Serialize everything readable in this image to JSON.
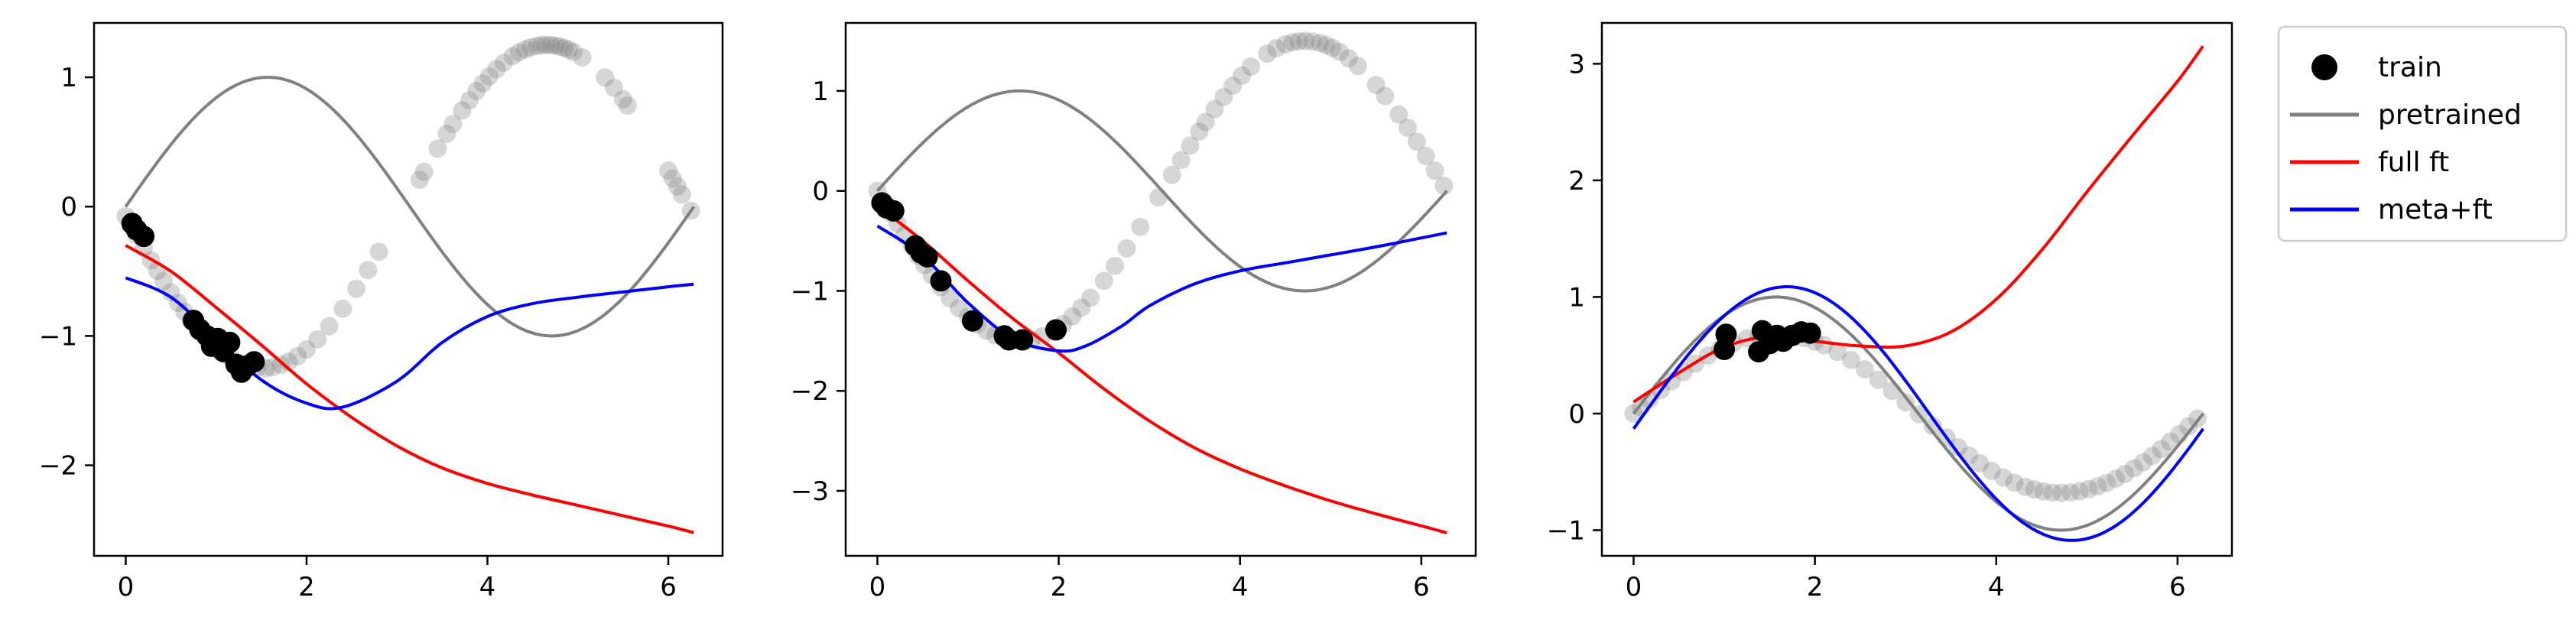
{
  "chart_data": [
    {
      "type": "line",
      "xlim": [
        -0.35,
        6.6
      ],
      "ylim": [
        -2.7,
        1.42
      ],
      "xticks": [
        0,
        2,
        4,
        6
      ],
      "yticks": [
        -2,
        -1,
        0,
        1
      ],
      "lines": {
        "pretrained": {
          "amp": 1.0,
          "phase": 0.0,
          "offset": 0.0
        },
        "full_ft": {
          "x": [
            0,
            0.5,
            1,
            1.5,
            2,
            2.5,
            3,
            3.5,
            4,
            4.5,
            5,
            5.5,
            6,
            6.28
          ],
          "y": [
            -0.3,
            -0.5,
            -0.78,
            -1.07,
            -1.37,
            -1.63,
            -1.85,
            -2.02,
            -2.14,
            -2.23,
            -2.31,
            -2.39,
            -2.47,
            -2.52
          ]
        },
        "meta_ft": {
          "x": [
            0,
            0.5,
            1,
            1.5,
            2,
            2.4,
            3,
            3.5,
            4,
            4.5,
            5,
            5.5,
            6,
            6.28
          ],
          "y": [
            -0.55,
            -0.7,
            -1.02,
            -1.34,
            -1.52,
            -1.55,
            -1.35,
            -1.05,
            -0.85,
            -0.75,
            -0.7,
            -0.66,
            -0.62,
            -0.6
          ]
        }
      },
      "test": {
        "amp": 1.25,
        "phase": 3.2,
        "offset": 0.0,
        "x": [
          0.0,
          0.06,
          0.12,
          0.2,
          0.28,
          0.35,
          0.42,
          0.5,
          0.58,
          0.65,
          0.72,
          0.8,
          0.88,
          0.95,
          1.02,
          1.1,
          1.18,
          1.26,
          1.35,
          1.45,
          1.55,
          1.62,
          1.72,
          1.8,
          1.9,
          2.0,
          2.12,
          2.25,
          2.4,
          2.55,
          2.68,
          2.8,
          3.25,
          3.3,
          3.45,
          3.55,
          3.62,
          3.72,
          3.8,
          3.88,
          3.95,
          4.02,
          4.1,
          4.18,
          4.28,
          4.35,
          4.42,
          4.48,
          4.55,
          4.6,
          4.65,
          4.7,
          4.75,
          4.8,
          4.85,
          4.9,
          4.95,
          5.05,
          5.3,
          5.4,
          5.5,
          5.55,
          6.0,
          6.05,
          6.1,
          6.15,
          6.25
        ]
      },
      "train": {
        "x": [
          0.07,
          0.12,
          0.2,
          0.75,
          0.82,
          0.9,
          0.95,
          1.02,
          1.08,
          1.15,
          1.22,
          1.28,
          1.35,
          1.42
        ],
        "y": [
          -0.13,
          -0.18,
          -0.23,
          -0.88,
          -0.95,
          -1.0,
          -1.08,
          -1.02,
          -1.12,
          -1.05,
          -1.22,
          -1.28,
          -1.23,
          -1.2
        ]
      }
    },
    {
      "type": "line",
      "xlim": [
        -0.35,
        6.6
      ],
      "ylim": [
        -3.65,
        1.68
      ],
      "xticks": [
        0,
        2,
        4,
        6
      ],
      "yticks": [
        -3,
        -2,
        -1,
        0,
        1
      ],
      "lines": {
        "pretrained": {
          "amp": 1.0,
          "phase": 0.0,
          "offset": 0.0
        },
        "full_ft": {
          "x": [
            0,
            0.5,
            1,
            1.5,
            2,
            2.5,
            3,
            3.5,
            4,
            4.5,
            5,
            5.5,
            6,
            6.28
          ],
          "y": [
            -0.15,
            -0.5,
            -0.9,
            -1.28,
            -1.62,
            -1.98,
            -2.3,
            -2.57,
            -2.78,
            -2.95,
            -3.1,
            -3.23,
            -3.35,
            -3.42
          ]
        },
        "meta_ft": {
          "x": [
            0,
            0.5,
            1,
            1.5,
            2,
            2.3,
            2.7,
            3,
            3.5,
            4,
            4.5,
            5,
            5.5,
            6,
            6.28
          ],
          "y": [
            -0.35,
            -0.65,
            -1.12,
            -1.48,
            -1.6,
            -1.55,
            -1.35,
            -1.15,
            -0.93,
            -0.8,
            -0.72,
            -0.64,
            -0.56,
            -0.47,
            -0.42
          ]
        },
        "reference": {
          "amp": 1.0,
          "phase": 0.0,
          "offset": 0.0
        }
      },
      "test": {
        "amp": 1.5,
        "phase": 3.14,
        "offset": 0.0,
        "x": [
          0.0,
          0.08,
          0.15,
          0.22,
          0.3,
          0.38,
          0.45,
          0.52,
          0.6,
          0.7,
          0.8,
          0.9,
          1.0,
          1.1,
          1.2,
          1.3,
          1.4,
          1.5,
          1.6,
          1.7,
          1.82,
          1.95,
          2.05,
          2.15,
          2.25,
          2.35,
          2.5,
          2.62,
          2.75,
          2.9,
          3.1,
          3.25,
          3.35,
          3.45,
          3.55,
          3.62,
          3.72,
          3.82,
          3.92,
          4.02,
          4.12,
          4.3,
          4.4,
          4.5,
          4.58,
          4.65,
          4.72,
          4.8,
          4.88,
          4.95,
          5.02,
          5.1,
          5.2,
          5.3,
          5.5,
          5.6,
          5.75,
          5.85,
          5.95,
          6.05,
          6.15,
          6.25
        ]
      },
      "train": {
        "x": [
          0.05,
          0.1,
          0.18,
          0.42,
          0.48,
          0.55,
          0.7,
          1.05,
          1.4,
          1.45,
          1.6,
          1.97
        ],
        "y": [
          -0.12,
          -0.17,
          -0.2,
          -0.55,
          -0.62,
          -0.66,
          -0.9,
          -1.3,
          -1.45,
          -1.49,
          -1.49,
          -1.39
        ]
      }
    },
    {
      "type": "line",
      "xlim": [
        -0.35,
        6.6
      ],
      "ylim": [
        -1.22,
        3.35
      ],
      "xticks": [
        0,
        2,
        4,
        6
      ],
      "yticks": [
        -1,
        0,
        1,
        2,
        3
      ],
      "lines": {
        "pretrained": {
          "amp": 1.0,
          "phase": 0.0,
          "offset": 0.0
        },
        "full_ft": {
          "x": [
            0,
            0.5,
            1,
            1.5,
            2,
            2.5,
            3,
            3.5,
            4,
            4.5,
            5,
            5.5,
            6,
            6.28
          ],
          "y": [
            0.1,
            0.35,
            0.57,
            0.66,
            0.62,
            0.58,
            0.58,
            0.7,
            0.98,
            1.4,
            1.9,
            2.38,
            2.85,
            3.15
          ]
        },
        "meta_ft": {
          "amp": 1.08,
          "phase": 0.0,
          "offset": 0.0,
          "x0": -0.13
        }
      },
      "test": {
        "amp": 0.68,
        "phase": 0.0,
        "offset": 0.0,
        "x": [
          0.0,
          0.08,
          0.18,
          0.3,
          0.42,
          0.55,
          0.68,
          0.82,
          0.95,
          1.1,
          1.25,
          1.38,
          1.5,
          1.62,
          1.75,
          1.88,
          2.0,
          2.1,
          2.25,
          2.4,
          2.55,
          2.7,
          2.85,
          3.0,
          3.15,
          3.3,
          3.45,
          3.58,
          3.7,
          3.82,
          3.95,
          4.08,
          4.2,
          4.32,
          4.42,
          4.52,
          4.62,
          4.72,
          4.82,
          4.92,
          5.02,
          5.12,
          5.22,
          5.32,
          5.42,
          5.52,
          5.62,
          5.72,
          5.82,
          5.92,
          6.02,
          6.12,
          6.22
        ]
      },
      "train": {
        "x": [
          1.0,
          1.02,
          1.38,
          1.42,
          1.5,
          1.58,
          1.65,
          1.75,
          1.85,
          1.95
        ],
        "y": [
          0.55,
          0.68,
          0.53,
          0.71,
          0.6,
          0.67,
          0.62,
          0.67,
          0.7,
          0.69
        ]
      }
    }
  ],
  "legend": {
    "items": [
      {
        "label": "train",
        "kind": "marker",
        "color": "#000000"
      },
      {
        "label": "pretrained",
        "kind": "line",
        "color": "#808080"
      },
      {
        "label": "full ft",
        "kind": "line",
        "color": "#ff0000"
      },
      {
        "label": "meta+ft",
        "kind": "line",
        "color": "#0000ff"
      }
    ]
  },
  "colors": {
    "train": "#000000",
    "test": "#808080",
    "pretrained": "#808080",
    "full_ft": "#ff0000",
    "meta_ft": "#0000ff"
  }
}
